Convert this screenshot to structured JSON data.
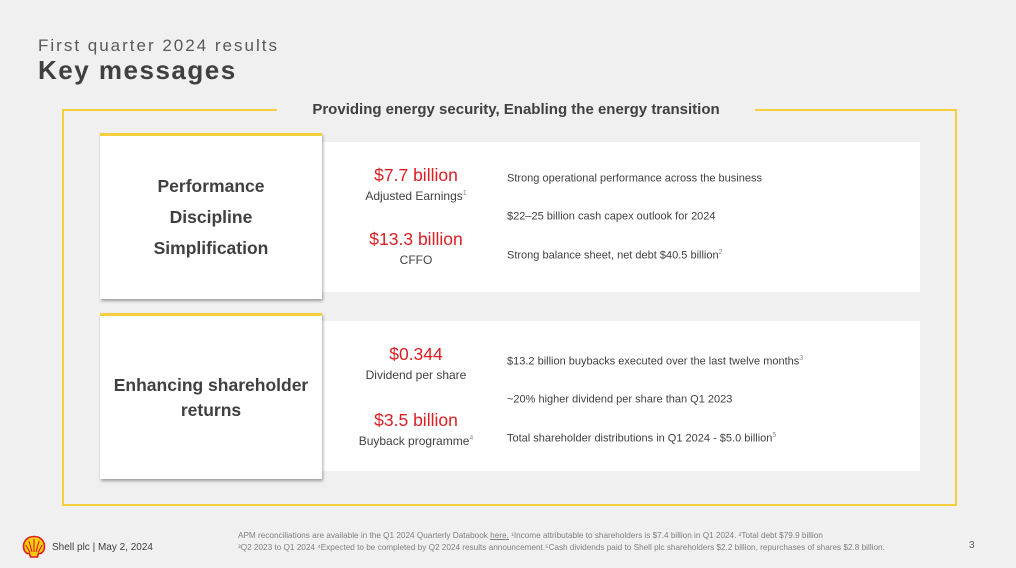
{
  "header": {
    "subtitle": "First quarter 2024 results",
    "title": "Key messages"
  },
  "banner": "Providing energy security, Enabling the energy transition",
  "section1": {
    "card_lines": [
      "Performance",
      "Discipline",
      "Simplification"
    ],
    "metrics": [
      {
        "value": "$7.7 billion",
        "label": "Adjusted Earnings",
        "footnote": "1"
      },
      {
        "value": "$13.3 billion",
        "label": "CFFO",
        "footnote": ""
      }
    ],
    "messages": [
      {
        "text": "Strong operational performance across the business",
        "footnote": ""
      },
      {
        "text": "$22–25 billion cash capex outlook for 2024",
        "footnote": ""
      },
      {
        "text": "Strong balance sheet, net debt $40.5 billion",
        "footnote": "2"
      }
    ]
  },
  "section2": {
    "card_lines": [
      "Enhancing shareholder",
      "returns"
    ],
    "metrics": [
      {
        "value": "$0.344",
        "label": "Dividend per share",
        "footnote": ""
      },
      {
        "value": "$3.5 billion",
        "label": "Buyback programme",
        "footnote": "4"
      }
    ],
    "messages": [
      {
        "text": "$13.2 billion buybacks executed over the last twelve months",
        "footnote": "3"
      },
      {
        "text": "~20% higher dividend per share than Q1 2023",
        "footnote": ""
      },
      {
        "text": "Total shareholder distributions in Q1 2024 - $5.0 billion",
        "footnote": "5"
      }
    ]
  },
  "footer": {
    "company": "Shell plc | May 2, 2024",
    "notes_line1_pre": "APM reconciliations are available in the Q1 2024 Quarterly Databook ",
    "notes_link": "here.",
    "notes_line1_post": " ¹Income attributable to shareholders is $7.4 billion in Q1 2024. ²Total debt $79.9 billion",
    "notes_line2": "³Q2 2023  to Q1 2024  ⁴Expected to be completed by Q2 2024 results announcement.⁵Cash dividends paid to Shell plc shareholders $2.2 billion, repurchases of shares $2.8 billion.",
    "page_number": "3",
    "logo_icon": "shell-pecten-logo"
  },
  "colors": {
    "accent_yellow": "#f4cf3b",
    "metric_red": "#dd1d21",
    "background": "#f0f0f0",
    "text": "#404040"
  }
}
